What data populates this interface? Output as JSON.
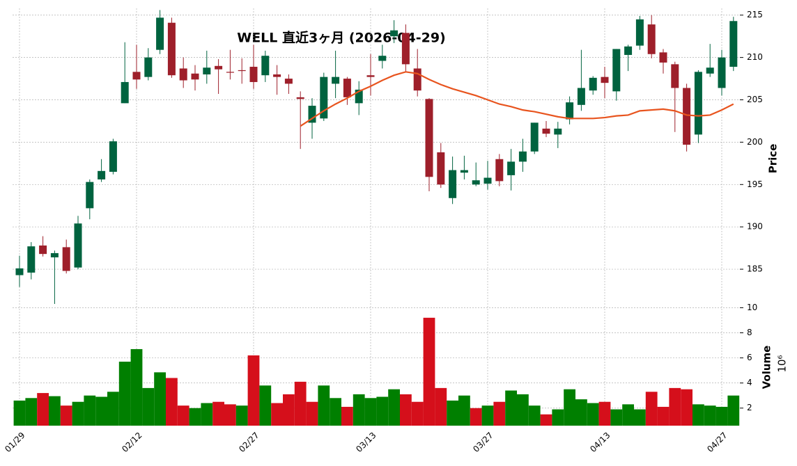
{
  "chart_data": [
    {
      "type": "candlestick",
      "title": "WELL 直近3ヶ月 (2026-04-29)",
      "ylabel": "Price",
      "categories": [
        "01/29",
        null,
        null,
        null,
        null,
        null,
        null,
        null,
        null,
        null,
        "02/12",
        null,
        null,
        null,
        null,
        null,
        null,
        null,
        null,
        null,
        "02/27",
        null,
        null,
        null,
        null,
        null,
        null,
        null,
        null,
        null,
        "03/13",
        null,
        null,
        null,
        null,
        null,
        null,
        null,
        null,
        null,
        "03/27",
        null,
        null,
        null,
        null,
        null,
        null,
        null,
        null,
        null,
        "04/13",
        null,
        null,
        null,
        null,
        null,
        null,
        null,
        null,
        null,
        "04/27",
        null
      ],
      "open": [
        184.3,
        184.6,
        187.8,
        186.4,
        187.6,
        185.2,
        192.2,
        195.6,
        196.5,
        204.6,
        208.3,
        207.7,
        210.9,
        214.1,
        208.7,
        208.1,
        208.0,
        209.0,
        208.3,
        208.5,
        208.9,
        207.9,
        208.0,
        207.5,
        205.3,
        202.3,
        202.8,
        206.9,
        207.5,
        204.6,
        207.9,
        209.6,
        212.5,
        212.9,
        208.7,
        205.1,
        198.8,
        193.4,
        196.4,
        195.0,
        195.1,
        198.0,
        196.1,
        197.7,
        198.9,
        201.6,
        200.9,
        202.7,
        204.4,
        206.1,
        207.7,
        206.0,
        210.3,
        211.4,
        213.9,
        210.6,
        209.2,
        206.4,
        200.9,
        208.1,
        206.4,
        208.9
      ],
      "high": [
        186.6,
        188.2,
        188.9,
        187.2,
        188.5,
        191.3,
        195.6,
        198.0,
        200.4,
        211.8,
        211.5,
        211.1,
        215.6,
        214.7,
        210.0,
        209.1,
        210.8,
        209.8,
        210.9,
        209.9,
        211.5,
        210.8,
        209.1,
        208.0,
        206.0,
        205.2,
        208.2,
        210.8,
        207.7,
        207.2,
        210.4,
        211.5,
        214.4,
        213.9,
        211.0,
        205.2,
        199.9,
        198.3,
        198.4,
        197.6,
        197.8,
        198.6,
        199.2,
        200.4,
        202.3,
        202.5,
        202.4,
        205.4,
        210.9,
        207.8,
        208.9,
        211.0,
        211.5,
        214.9,
        215.0,
        211.0,
        209.5,
        206.9,
        208.5,
        211.6,
        210.9,
        214.8
      ],
      "low": [
        182.9,
        183.8,
        186.5,
        180.9,
        184.5,
        185.0,
        190.9,
        195.3,
        196.2,
        204.6,
        206.3,
        207.3,
        210.4,
        207.6,
        206.4,
        206.1,
        206.9,
        205.7,
        207.4,
        206.9,
        206.3,
        207.1,
        205.6,
        205.7,
        199.2,
        200.4,
        202.5,
        205.2,
        204.4,
        203.2,
        205.5,
        208.7,
        211.7,
        208.3,
        205.4,
        194.2,
        194.6,
        192.7,
        195.6,
        194.8,
        194.4,
        194.8,
        194.3,
        196.5,
        198.6,
        200.6,
        199.3,
        202.1,
        203.7,
        205.6,
        205.2,
        204.9,
        208.4,
        210.9,
        209.9,
        208.1,
        201.2,
        198.9,
        199.9,
        207.7,
        205.5,
        208.4
      ],
      "close": [
        185.1,
        187.7,
        186.8,
        186.9,
        184.8,
        190.4,
        195.3,
        196.6,
        200.1,
        207.1,
        207.4,
        210.0,
        214.7,
        207.9,
        207.3,
        207.4,
        208.8,
        208.6,
        208.2,
        208.4,
        207.1,
        210.2,
        207.7,
        206.9,
        205.1,
        204.3,
        207.7,
        207.7,
        205.3,
        206.2,
        207.7,
        210.2,
        213.2,
        209.2,
        206.1,
        195.9,
        195.0,
        196.7,
        196.7,
        195.5,
        195.8,
        195.4,
        197.7,
        198.9,
        202.3,
        201.0,
        201.6,
        204.7,
        206.4,
        207.6,
        207.0,
        211.0,
        211.3,
        214.5,
        210.4,
        209.4,
        206.4,
        199.7,
        208.3,
        208.8,
        210.0,
        214.3
      ],
      "up_color": "#00633f",
      "down_color": "#9e1f2a",
      "ma": {
        "color": "#e8541e",
        "values": [
          null,
          null,
          null,
          null,
          null,
          null,
          null,
          null,
          null,
          null,
          null,
          null,
          null,
          null,
          null,
          null,
          null,
          null,
          null,
          null,
          null,
          null,
          null,
          null,
          201.9,
          202.8,
          203.7,
          204.5,
          205.2,
          206.0,
          206.6,
          207.3,
          207.9,
          208.3,
          208.1,
          207.4,
          206.8,
          206.3,
          205.9,
          205.5,
          205.0,
          204.5,
          204.2,
          203.8,
          203.6,
          203.3,
          203.0,
          202.8,
          202.8,
          202.8,
          202.9,
          203.1,
          203.2,
          203.7,
          203.8,
          203.9,
          203.7,
          203.2,
          203.1,
          203.2,
          203.8,
          204.5
        ]
      },
      "ylim": [
        180.9,
        215.8
      ],
      "yticks": [
        185,
        190,
        195,
        200,
        205,
        210,
        215
      ],
      "grid": true
    },
    {
      "type": "bar",
      "ylabel": "Volume",
      "scale_label": "10⁶",
      "values": [
        2.6,
        2.8,
        3.2,
        2.95,
        2.2,
        2.5,
        3.0,
        2.9,
        3.3,
        5.7,
        6.7,
        3.6,
        4.85,
        4.4,
        2.2,
        2.0,
        2.4,
        2.5,
        2.3,
        2.2,
        6.2,
        3.8,
        2.4,
        3.1,
        4.1,
        2.5,
        3.8,
        2.8,
        2.1,
        3.1,
        2.8,
        2.9,
        3.5,
        3.1,
        2.5,
        9.2,
        3.6,
        2.6,
        3.0,
        2.0,
        2.2,
        2.5,
        3.4,
        3.1,
        2.2,
        1.5,
        1.9,
        3.5,
        2.7,
        2.4,
        2.5,
        1.9,
        2.3,
        1.9,
        3.3,
        2.1,
        3.6,
        3.5,
        2.3,
        2.2,
        2.1,
        3.0
      ],
      "colors": [
        "#007f00",
        "#007f00",
        "#d50f1b",
        "#007f00",
        "#d50f1b",
        "#007f00",
        "#007f00",
        "#007f00",
        "#007f00",
        "#007f00",
        "#007f00",
        "#007f00",
        "#007f00",
        "#d50f1b",
        "#d50f1b",
        "#007f00",
        "#007f00",
        "#d50f1b",
        "#d50f1b",
        "#007f00",
        "#d50f1b",
        "#007f00",
        "#d50f1b",
        "#d50f1b",
        "#d50f1b",
        "#d50f1b",
        "#007f00",
        "#007f00",
        "#d50f1b",
        "#007f00",
        "#007f00",
        "#007f00",
        "#007f00",
        "#d50f1b",
        "#d50f1b",
        "#d50f1b",
        "#d50f1b",
        "#007f00",
        "#007f00",
        "#d50f1b",
        "#007f00",
        "#d50f1b",
        "#007f00",
        "#007f00",
        "#007f00",
        "#d50f1b",
        "#007f00",
        "#007f00",
        "#007f00",
        "#007f00",
        "#d50f1b",
        "#007f00",
        "#007f00",
        "#007f00",
        "#d50f1b",
        "#d50f1b",
        "#d50f1b",
        "#d50f1b",
        "#007f00",
        "#007f00",
        "#007f00",
        "#007f00"
      ],
      "ylim": [
        0.6,
        10.3
      ],
      "yticks": [
        2,
        4,
        6,
        8,
        10
      ],
      "grid": true
    }
  ]
}
